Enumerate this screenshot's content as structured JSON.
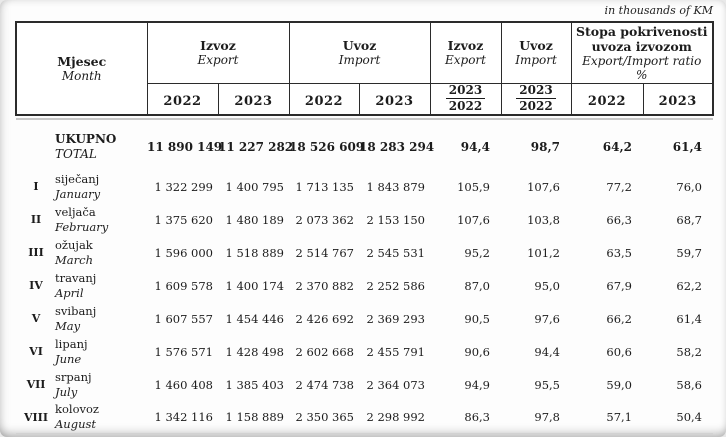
{
  "note": "in thousands of KM",
  "table": {
    "month_header": {
      "hr": "Mjesec",
      "en": "Month"
    },
    "groups": {
      "export": {
        "hr": "Izvoz",
        "en": "Export"
      },
      "import": {
        "hr": "Uvoz",
        "en": "Import"
      },
      "export_index": {
        "hr": "Izvoz",
        "en": "Export"
      },
      "import_index": {
        "hr": "Uvoz",
        "en": "Import"
      },
      "coverage": {
        "hr": "Stopa pokrivenosti uvoza izvozom",
        "en": "Export/Import ratio",
        "unit": "%"
      }
    },
    "years": {
      "y2022": "2022",
      "y2023": "2023"
    },
    "index_fraction": {
      "numerator": "2023",
      "denominator": "2022"
    },
    "rows": [
      {
        "num": "",
        "hr": "UKUPNO",
        "en": "TOTAL",
        "total": true,
        "values": [
          "11 890 149",
          "11 227 282",
          "18 526 609",
          "18 283 294",
          "94,4",
          "98,7",
          "64,2",
          "61,4"
        ]
      },
      {
        "num": "I",
        "hr": "siječanj",
        "en": "January",
        "values": [
          "1 322 299",
          "1 400 795",
          "1 713 135",
          "1 843 879",
          "105,9",
          "107,6",
          "77,2",
          "76,0"
        ]
      },
      {
        "num": "II",
        "hr": "veljača",
        "en": "February",
        "values": [
          "1 375 620",
          "1 480 189",
          "2 073 362",
          "2 153 150",
          "107,6",
          "103,8",
          "66,3",
          "68,7"
        ]
      },
      {
        "num": "III",
        "hr": "ožujak",
        "en": "March",
        "values": [
          "1 596 000",
          "1 518 889",
          "2 514 767",
          "2 545 531",
          "95,2",
          "101,2",
          "63,5",
          "59,7"
        ]
      },
      {
        "num": "IV",
        "hr": "travanj",
        "en": "April",
        "values": [
          "1 609 578",
          "1 400 174",
          "2 370 882",
          "2 252 586",
          "87,0",
          "95,0",
          "67,9",
          "62,2"
        ]
      },
      {
        "num": "V",
        "hr": "svibanj",
        "en": "May",
        "values": [
          "1 607 557",
          "1 454 446",
          "2 426 692",
          "2 369 293",
          "90,5",
          "97,6",
          "66,2",
          "61,4"
        ]
      },
      {
        "num": "VI",
        "hr": "lipanj",
        "en": "June",
        "values": [
          "1 576 571",
          "1 428 498",
          "2 602 668",
          "2 455 791",
          "90,6",
          "94,4",
          "60,6",
          "58,2"
        ]
      },
      {
        "num": "VII",
        "hr": "srpanj",
        "en": "July",
        "values": [
          "1 460 408",
          "1 385 403",
          "2 474 738",
          "2 364 073",
          "94,9",
          "95,5",
          "59,0",
          "58,6"
        ]
      },
      {
        "num": "VIII",
        "hr": "kolovoz",
        "en": "August",
        "values": [
          "1 342 116",
          "1 158 889",
          "2 350 365",
          "2 298 992",
          "86,3",
          "97,8",
          "57,1",
          "50,4"
        ]
      }
    ]
  }
}
